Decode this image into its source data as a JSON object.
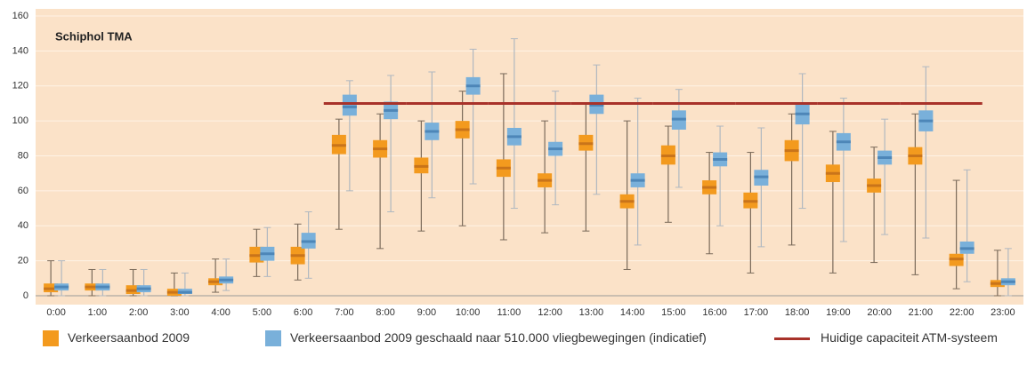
{
  "chart_data": {
    "type": "box",
    "title": "Schiphol TMA",
    "categories": [
      "0:00",
      "1:00",
      "2:00",
      "3:00",
      "4:00",
      "5:00",
      "6:00",
      "7:00",
      "8:00",
      "9:00",
      "10:00",
      "11:00",
      "12:00",
      "13:00",
      "14:00",
      "15:00",
      "16:00",
      "17:00",
      "18:00",
      "19:00",
      "20:00",
      "21:00",
      "22:00",
      "23:00"
    ],
    "ylim": [
      0,
      160
    ],
    "yticks": [
      0,
      20,
      40,
      60,
      80,
      100,
      120,
      140,
      160
    ],
    "grid": true,
    "series": [
      {
        "name": "Verkeersaanbod 2009",
        "color": "#f39a1e",
        "min": [
          0,
          0,
          0,
          0,
          2,
          11,
          9,
          38,
          27,
          37,
          40,
          32,
          36,
          37,
          15,
          42,
          24,
          13,
          29,
          13,
          19,
          12,
          4,
          0
        ],
        "q1": [
          2,
          3,
          1,
          0,
          6,
          19,
          18,
          81,
          79,
          70,
          90,
          68,
          62,
          83,
          50,
          75,
          58,
          50,
          77,
          65,
          59,
          75,
          17,
          5
        ],
        "median": [
          4,
          5,
          3,
          2,
          8,
          23,
          23,
          86,
          84,
          74,
          95,
          73,
          66,
          87,
          54,
          80,
          62,
          54,
          83,
          70,
          63,
          80,
          21,
          7
        ],
        "q3": [
          7,
          7,
          6,
          4,
          10,
          28,
          28,
          92,
          89,
          79,
          100,
          78,
          70,
          92,
          58,
          86,
          66,
          59,
          89,
          75,
          67,
          85,
          24,
          9
        ],
        "max": [
          20,
          15,
          15,
          13,
          21,
          38,
          41,
          101,
          104,
          100,
          117,
          127,
          100,
          110,
          100,
          97,
          82,
          82,
          104,
          94,
          85,
          104,
          66,
          26
        ]
      },
      {
        "name": "Verkeersaanbod 2009 geschaald naar 510.000 vliegbewegingen (indicatief)",
        "color": "#79b0da",
        "min": [
          0,
          0,
          0,
          0,
          3,
          11,
          10,
          60,
          48,
          56,
          64,
          50,
          52,
          58,
          29,
          62,
          40,
          28,
          50,
          31,
          35,
          33,
          8,
          0
        ],
        "q1": [
          3,
          3,
          2,
          1,
          7,
          20,
          27,
          103,
          101,
          89,
          115,
          86,
          80,
          104,
          62,
          95,
          74,
          63,
          98,
          83,
          75,
          94,
          24,
          6
        ],
        "median": [
          5,
          5,
          4,
          2,
          9,
          24,
          31,
          108,
          106,
          94,
          120,
          91,
          84,
          109,
          66,
          101,
          78,
          68,
          104,
          88,
          79,
          100,
          27,
          8
        ],
        "q3": [
          7,
          7,
          6,
          4,
          11,
          28,
          36,
          115,
          111,
          99,
          125,
          96,
          88,
          115,
          70,
          106,
          82,
          72,
          110,
          93,
          83,
          106,
          31,
          10
        ],
        "max": [
          20,
          15,
          15,
          13,
          21,
          39,
          48,
          123,
          126,
          128,
          141,
          147,
          117,
          132,
          113,
          118,
          97,
          96,
          127,
          113,
          101,
          131,
          72,
          27
        ]
      }
    ],
    "capacity": {
      "name": "Huidige capaciteit ATM-systeem",
      "color": "#a8322a",
      "values": [
        null,
        null,
        null,
        null,
        null,
        null,
        null,
        110,
        110,
        110,
        110,
        110,
        110,
        110,
        110,
        110,
        110,
        110,
        110,
        110,
        110,
        110,
        110,
        null
      ]
    }
  }
}
